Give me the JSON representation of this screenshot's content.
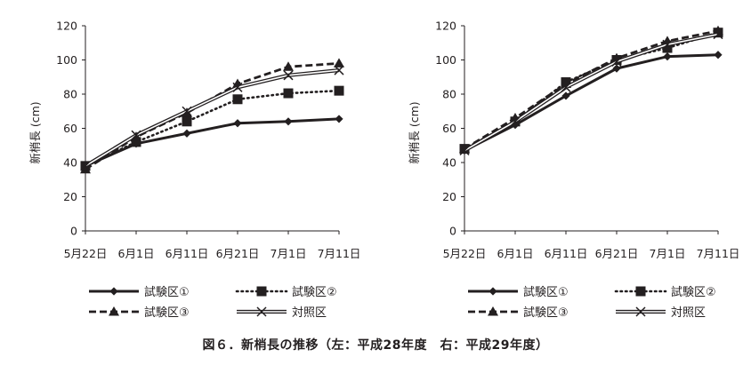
{
  "figure": {
    "caption": "図６．新梢長の推移（左：平成28年度　右：平成29年度）"
  },
  "chart_data": [
    {
      "type": "line",
      "ylabel": "新梢長 (cm)",
      "xlabel": "",
      "ylim": [
        0,
        120
      ],
      "yticks": [
        0,
        20,
        40,
        60,
        80,
        100,
        120
      ],
      "categories": [
        "5月22日",
        "6月1日",
        "6月11日",
        "6月21日",
        "7月1日",
        "7月11日"
      ],
      "legend_position": "bottom",
      "grid": false,
      "series": [
        {
          "name": "試験区①",
          "marker": "diamond",
          "style": "solid-thick",
          "values": [
            38,
            51,
            57,
            63,
            64,
            65.5
          ]
        },
        {
          "name": "試験区②",
          "marker": "square",
          "style": "dotted",
          "values": [
            38,
            52,
            64,
            77,
            80.5,
            82
          ]
        },
        {
          "name": "試験区③",
          "marker": "triangle",
          "style": "dashed",
          "values": [
            36,
            55,
            69,
            86,
            96,
            98
          ]
        },
        {
          "name": "対照区",
          "marker": "x",
          "style": "double",
          "values": [
            38,
            56,
            70,
            84,
            91,
            94
          ]
        }
      ]
    },
    {
      "type": "line",
      "ylabel": "新梢長 (cm)",
      "xlabel": "",
      "ylim": [
        0,
        120
      ],
      "yticks": [
        0,
        20,
        40,
        60,
        80,
        100,
        120
      ],
      "categories": [
        "5月22日",
        "6月1日",
        "6月11日",
        "6月21日",
        "7月1日",
        "7月11日"
      ],
      "legend_position": "bottom",
      "grid": false,
      "series": [
        {
          "name": "試験区①",
          "marker": "diamond",
          "style": "solid-thick",
          "values": [
            47,
            62,
            79,
            95,
            102,
            103
          ]
        },
        {
          "name": "試験区②",
          "marker": "square",
          "style": "dotted",
          "values": [
            48,
            64,
            87,
            100,
            107,
            116
          ]
        },
        {
          "name": "試験区③",
          "marker": "triangle",
          "style": "dashed",
          "values": [
            48,
            66,
            86,
            101,
            111,
            117
          ]
        },
        {
          "name": "対照区",
          "marker": "x",
          "style": "double",
          "values": [
            47,
            64,
            84,
            99,
            109,
            115
          ]
        }
      ]
    }
  ]
}
